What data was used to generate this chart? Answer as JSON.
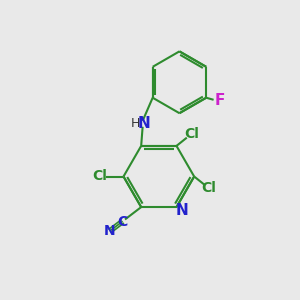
{
  "bg_color": "#e9e9e9",
  "bond_color": "#2e8b2e",
  "n_color": "#2222cc",
  "cl_color": "#2e8b2e",
  "f_color": "#cc22cc",
  "lw": 1.5,
  "figsize": [
    3.0,
    3.0
  ],
  "dpi": 100,
  "xlim": [
    0,
    10
  ],
  "ylim": [
    0,
    10
  ]
}
